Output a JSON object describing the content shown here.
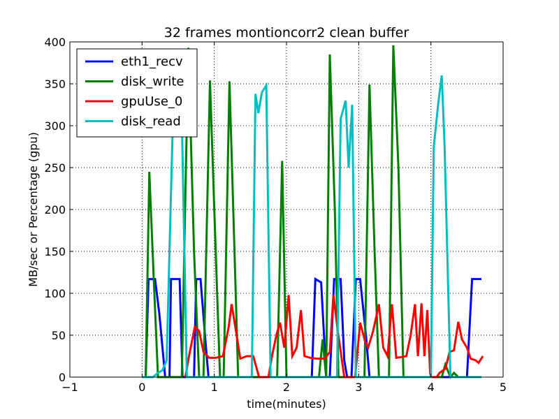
{
  "chart_data": {
    "type": "line",
    "title": "32 frames montioncorr2 clean buffer",
    "xlabel": "time(minutes)",
    "ylabel": "MB/sec or Percentage (gpu)",
    "xlim": [
      -1,
      5
    ],
    "ylim": [
      0,
      400
    ],
    "xticks": [
      -1,
      0,
      1,
      2,
      3,
      4,
      5
    ],
    "yticks": [
      0,
      50,
      100,
      150,
      200,
      250,
      300,
      350,
      400
    ],
    "xtick_labels": [
      "−1",
      "0",
      "1",
      "2",
      "3",
      "4",
      "5"
    ],
    "ytick_labels": [
      "0",
      "50",
      "100",
      "150",
      "200",
      "250",
      "300",
      "350",
      "400"
    ],
    "grid": true,
    "legend_position": "top-left",
    "series": [
      {
        "name": "eth1_recv",
        "color": "#0000ff",
        "points": [
          [
            0,
            0
          ],
          [
            0.05,
            0
          ],
          [
            0.09,
            117
          ],
          [
            0.18,
            117
          ],
          [
            0.24,
            75
          ],
          [
            0.32,
            0
          ],
          [
            0.38,
            0
          ],
          [
            0.4,
            117
          ],
          [
            0.52,
            117
          ],
          [
            0.56,
            0
          ],
          [
            0.72,
            0
          ],
          [
            0.75,
            117
          ],
          [
            0.81,
            117
          ],
          [
            0.88,
            40
          ],
          [
            0.92,
            0
          ],
          [
            2.35,
            0
          ],
          [
            2.4,
            117
          ],
          [
            2.48,
            113
          ],
          [
            2.52,
            50
          ],
          [
            2.55,
            0
          ],
          [
            2.6,
            0
          ],
          [
            2.66,
            117
          ],
          [
            2.75,
            117
          ],
          [
            2.8,
            20
          ],
          [
            2.84,
            0
          ],
          [
            2.9,
            0
          ],
          [
            2.96,
            117
          ],
          [
            3.02,
            117
          ],
          [
            3.1,
            50
          ],
          [
            3.15,
            0
          ],
          [
            4.5,
            0
          ],
          [
            4.57,
            117
          ],
          [
            4.7,
            117
          ]
        ]
      },
      {
        "name": "disk_write",
        "color": "#008000",
        "points": [
          [
            0,
            0
          ],
          [
            0.05,
            0
          ],
          [
            0.1,
            245
          ],
          [
            0.16,
            120
          ],
          [
            0.22,
            0
          ],
          [
            0.55,
            0
          ],
          [
            0.64,
            393
          ],
          [
            0.72,
            150
          ],
          [
            0.79,
            0
          ],
          [
            0.85,
            0
          ],
          [
            0.94,
            354
          ],
          [
            1.02,
            150
          ],
          [
            1.08,
            0
          ],
          [
            1.13,
            0
          ],
          [
            1.21,
            353
          ],
          [
            1.28,
            150
          ],
          [
            1.33,
            0
          ],
          [
            1.87,
            0
          ],
          [
            1.94,
            258
          ],
          [
            2.0,
            0
          ],
          [
            2.45,
            0
          ],
          [
            2.5,
            45
          ],
          [
            2.55,
            0
          ],
          [
            2.6,
            385
          ],
          [
            2.67,
            200
          ],
          [
            2.72,
            0
          ],
          [
            3.08,
            0
          ],
          [
            3.15,
            349
          ],
          [
            3.22,
            150
          ],
          [
            3.28,
            0
          ],
          [
            3.42,
            0
          ],
          [
            3.48,
            396
          ],
          [
            3.55,
            250
          ],
          [
            3.62,
            0
          ],
          [
            4.15,
            0
          ],
          [
            4.2,
            15
          ],
          [
            4.27,
            0
          ],
          [
            4.32,
            5
          ],
          [
            4.38,
            0
          ]
        ]
      },
      {
        "name": "gpuUse_0",
        "color": "#ff0000",
        "points": [
          [
            0.6,
            0
          ],
          [
            0.65,
            25
          ],
          [
            0.73,
            60
          ],
          [
            0.79,
            55
          ],
          [
            0.85,
            30
          ],
          [
            0.93,
            23
          ],
          [
            1.02,
            23
          ],
          [
            1.12,
            25
          ],
          [
            1.2,
            60
          ],
          [
            1.24,
            87
          ],
          [
            1.3,
            55
          ],
          [
            1.36,
            22
          ],
          [
            1.45,
            25
          ],
          [
            1.54,
            25
          ],
          [
            1.62,
            0
          ],
          [
            1.75,
            0
          ],
          [
            1.8,
            25
          ],
          [
            1.86,
            50
          ],
          [
            1.91,
            65
          ],
          [
            1.97,
            35
          ],
          [
            2.03,
            98
          ],
          [
            2.08,
            25
          ],
          [
            2.14,
            35
          ],
          [
            2.2,
            80
          ],
          [
            2.25,
            25
          ],
          [
            2.33,
            23
          ],
          [
            2.42,
            22
          ],
          [
            2.53,
            22
          ],
          [
            2.6,
            30
          ],
          [
            2.65,
            98
          ],
          [
            2.71,
            55
          ],
          [
            2.8,
            0
          ],
          [
            2.95,
            0
          ],
          [
            3.02,
            65
          ],
          [
            3.09,
            42
          ],
          [
            3.13,
            35
          ],
          [
            3.2,
            55
          ],
          [
            3.28,
            87
          ],
          [
            3.34,
            35
          ],
          [
            3.4,
            25
          ],
          [
            3.46,
            87
          ],
          [
            3.52,
            23
          ],
          [
            3.6,
            24
          ],
          [
            3.66,
            25
          ],
          [
            3.72,
            50
          ],
          [
            3.78,
            87
          ],
          [
            3.82,
            25
          ],
          [
            3.87,
            88
          ],
          [
            3.91,
            25
          ],
          [
            3.95,
            80
          ],
          [
            3.99,
            5
          ],
          [
            4.0,
            0
          ],
          [
            4.08,
            0
          ],
          [
            4.12,
            5
          ],
          [
            4.2,
            10
          ],
          [
            4.26,
            30
          ],
          [
            4.32,
            32
          ],
          [
            4.38,
            66
          ],
          [
            4.43,
            45
          ],
          [
            4.5,
            35
          ],
          [
            4.55,
            22
          ],
          [
            4.62,
            20
          ],
          [
            4.66,
            17
          ],
          [
            4.72,
            25
          ]
        ]
      },
      {
        "name": "disk_read",
        "color": "#00bfbf",
        "points": [
          [
            0,
            0
          ],
          [
            0.15,
            0
          ],
          [
            0.22,
            5
          ],
          [
            0.28,
            8
          ],
          [
            0.34,
            20
          ],
          [
            0.44,
            350
          ],
          [
            0.5,
            330
          ],
          [
            0.55,
            310
          ],
          [
            0.62,
            0
          ],
          [
            0.66,
            0
          ],
          [
            1.52,
            0
          ],
          [
            1.57,
            338
          ],
          [
            1.61,
            315
          ],
          [
            1.66,
            340
          ],
          [
            1.72,
            348
          ],
          [
            1.78,
            0
          ],
          [
            2.7,
            0
          ],
          [
            2.75,
            308
          ],
          [
            2.82,
            330
          ],
          [
            2.86,
            250
          ],
          [
            2.91,
            325
          ],
          [
            2.96,
            0
          ],
          [
            4.0,
            0
          ],
          [
            4.04,
            275
          ],
          [
            4.1,
            325
          ],
          [
            4.15,
            360
          ],
          [
            4.19,
            275
          ],
          [
            4.27,
            0
          ],
          [
            4.7,
            0
          ]
        ]
      }
    ]
  }
}
